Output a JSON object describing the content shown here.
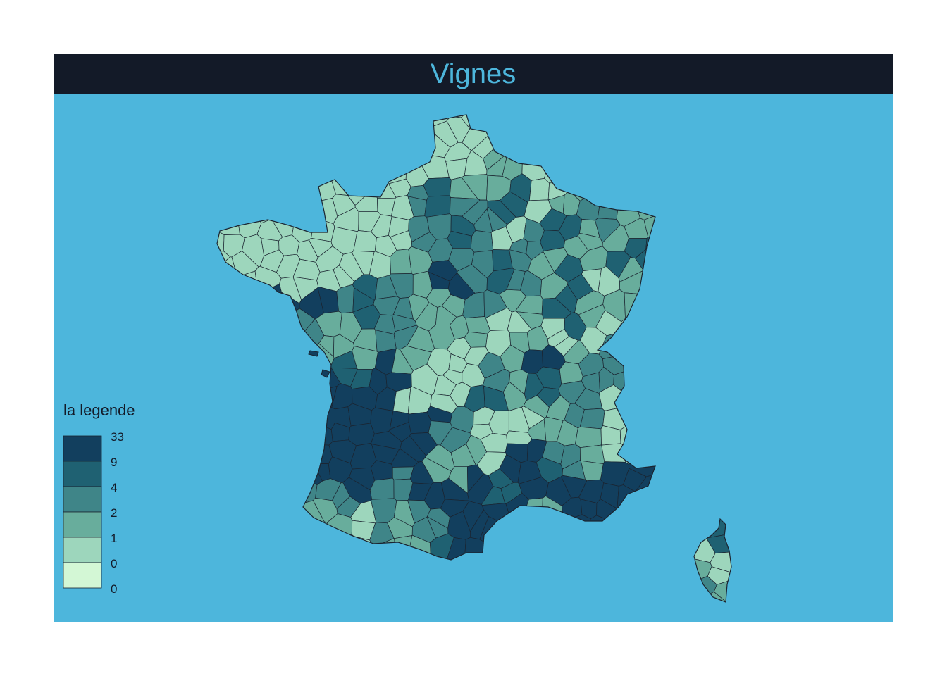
{
  "title": "Vignes",
  "colors": {
    "background": "#ffffff",
    "title_bar": "#131a28",
    "title_text": "#4db6dc",
    "sea": "#4db6dc",
    "border": "#1b2430"
  },
  "legend": {
    "title": "la legende",
    "breaks": [
      "33",
      "9",
      "4",
      "2",
      "1",
      "0",
      "0"
    ],
    "classes": [
      {
        "from": "9",
        "to": "33",
        "color": "#123f5e"
      },
      {
        "from": "4",
        "to": "9",
        "color": "#1f6172"
      },
      {
        "from": "2",
        "to": "4",
        "color": "#3f8588"
      },
      {
        "from": "1",
        "to": "2",
        "color": "#68ad9c"
      },
      {
        "from": "0",
        "to": "1",
        "color": "#9dd6bc"
      },
      {
        "from": "0",
        "to": "0",
        "color": "#d3f7d5"
      }
    ]
  }
}
